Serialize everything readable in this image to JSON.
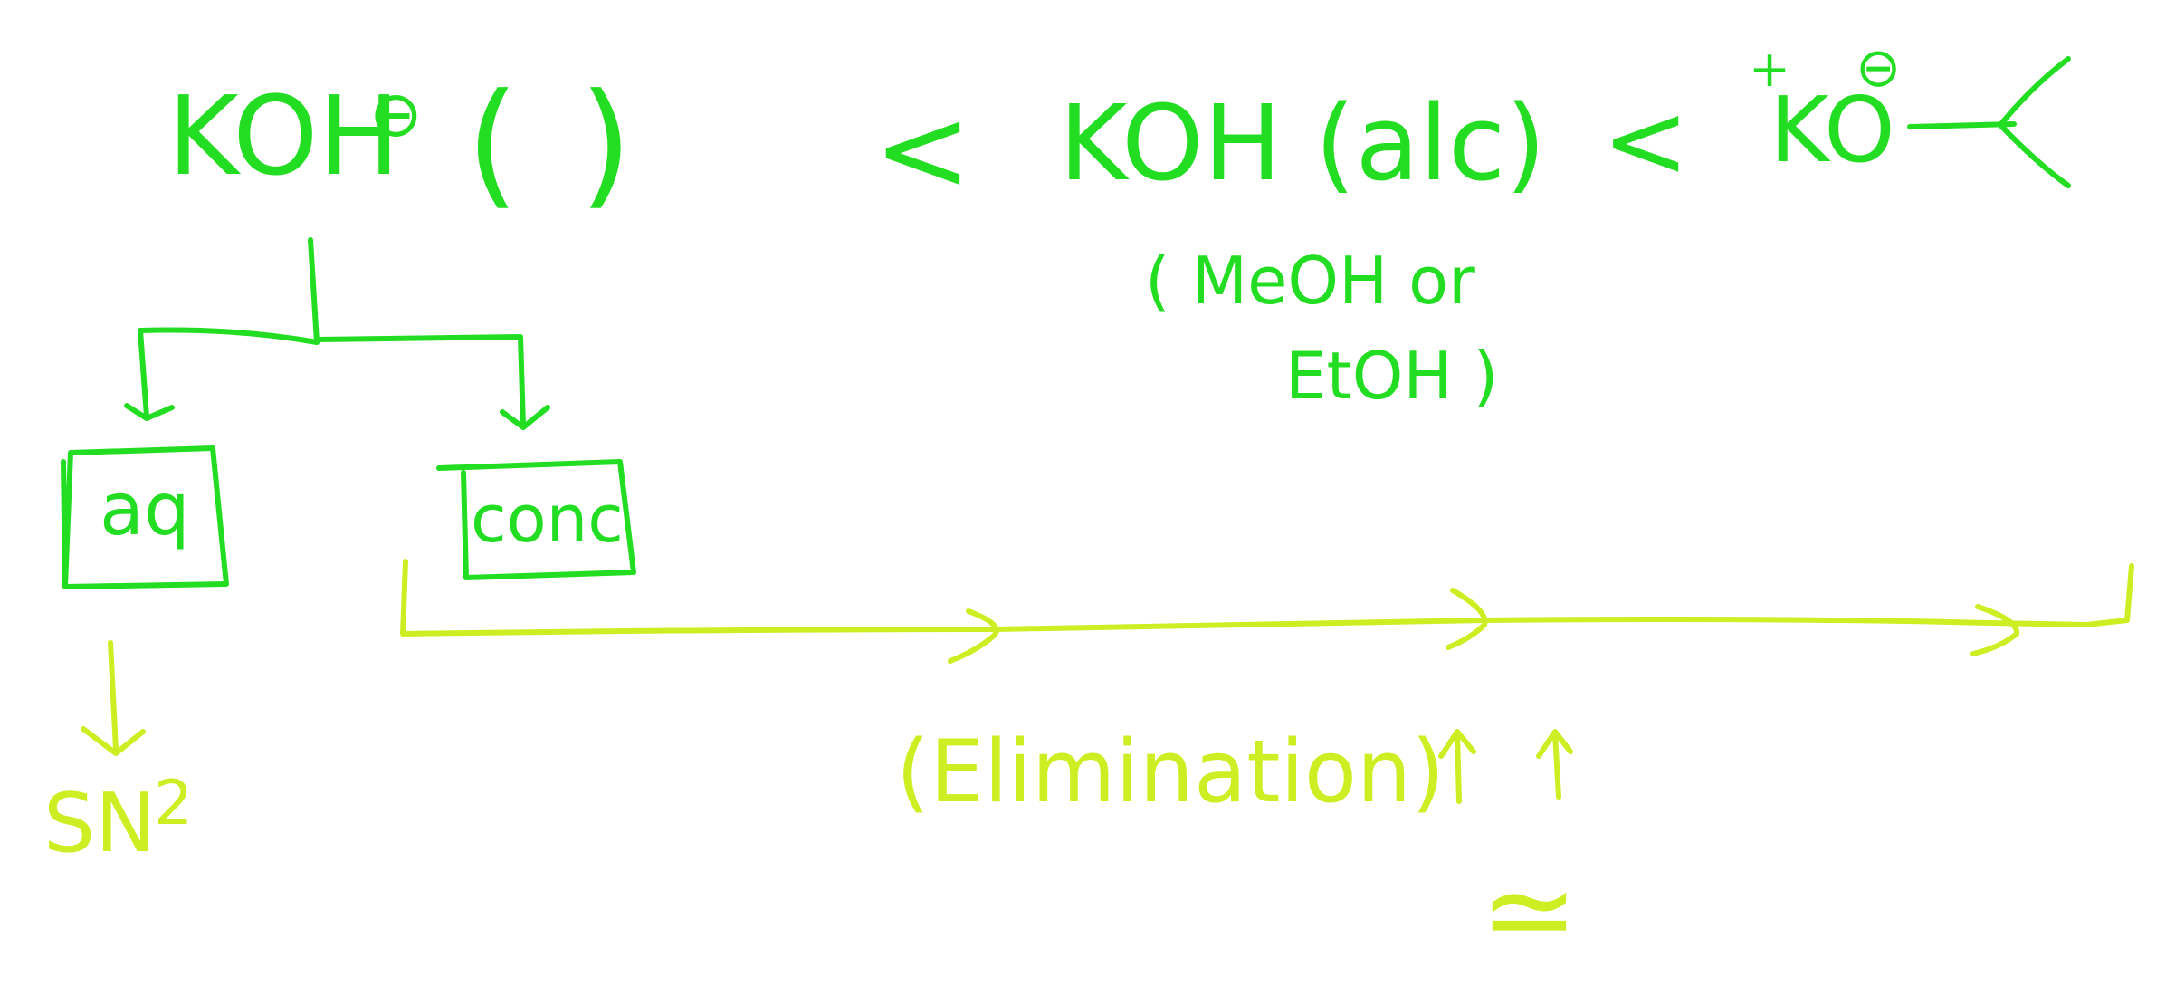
{
  "board": {
    "background": "#ffffff",
    "colors": {
      "green_ink": "#22dd22",
      "yellow_ink": "#ccee22"
    }
  },
  "labels": {
    "koh_minus": "KOH",
    "minus_charge": "⊖",
    "open_paren": "(",
    "close_paren": ")",
    "less_than_1": "<",
    "koh_alc": "KOH (alc)",
    "less_than_2": "<",
    "plus_charge": "+",
    "tbuok": "KO",
    "tbuok_charge": "⊖",
    "solvent_line1": "( MeOH or",
    "solvent_line2": "EtOH )",
    "box_aq": "aq",
    "box_conc": "conc",
    "sn2": "SN",
    "sn2_sup": "2",
    "elimination": "(Elimination)",
    "approx_sign": "≃"
  }
}
